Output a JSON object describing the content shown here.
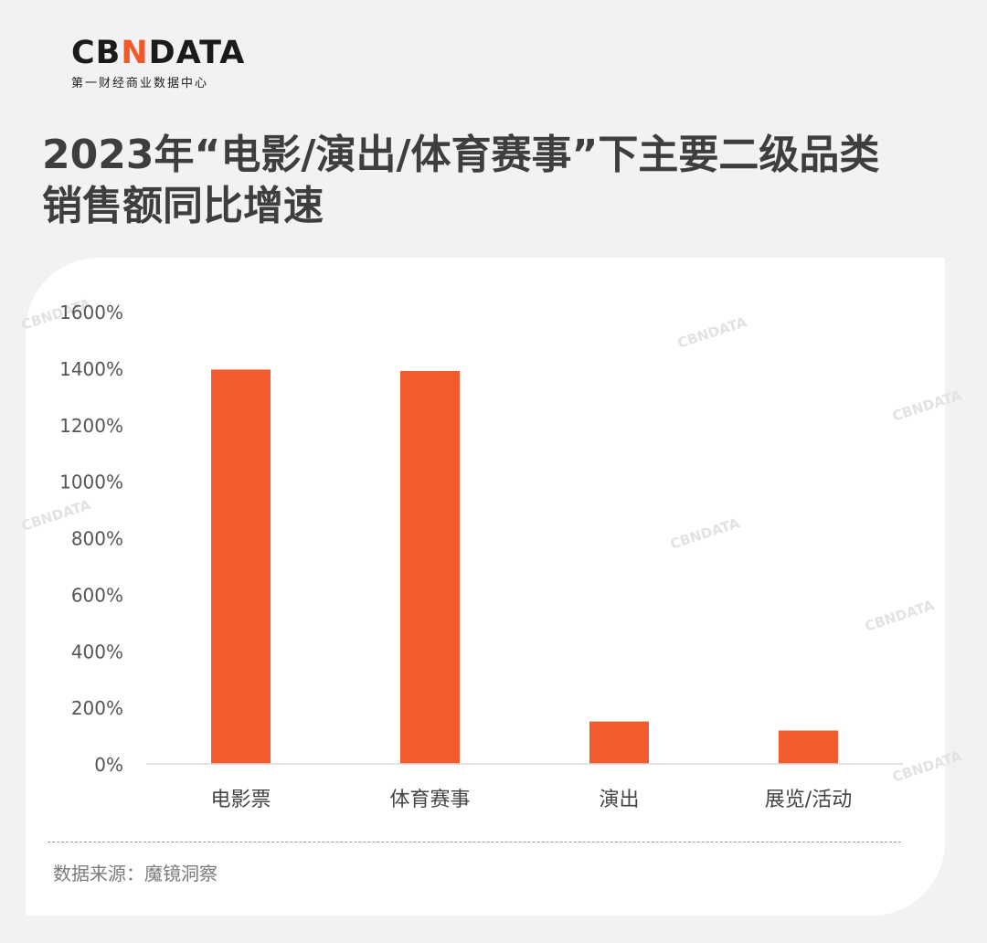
{
  "logo": {
    "prefix": "CB",
    "accent": "N",
    "suffix": "DATA",
    "subtitle": "第一财经商业数据中心"
  },
  "title_line1": "2023年“电影/演出/体育赛事”下主要二级品类",
  "title_line2": "销售额同比增速",
  "source": "数据来源：魔镜洞察",
  "watermark": "CBNDATA",
  "colors": {
    "bar": "#f25b2e",
    "accent": "#f05a2a",
    "background": "#f0f2f3"
  },
  "chart_data": {
    "type": "bar",
    "categories": [
      "电影票",
      "体育赛事",
      "演出",
      "展览/活动"
    ],
    "values": [
      1395,
      1390,
      150,
      118
    ],
    "ylim": [
      0,
      1600
    ],
    "yticks": [
      0,
      200,
      400,
      600,
      800,
      1000,
      1200,
      1400,
      1600
    ],
    "ytick_labels": [
      "0%",
      "200%",
      "400%",
      "600%",
      "800%",
      "1000%",
      "1200%",
      "1400%",
      "1600%"
    ],
    "grid": false,
    "legend": "none"
  }
}
